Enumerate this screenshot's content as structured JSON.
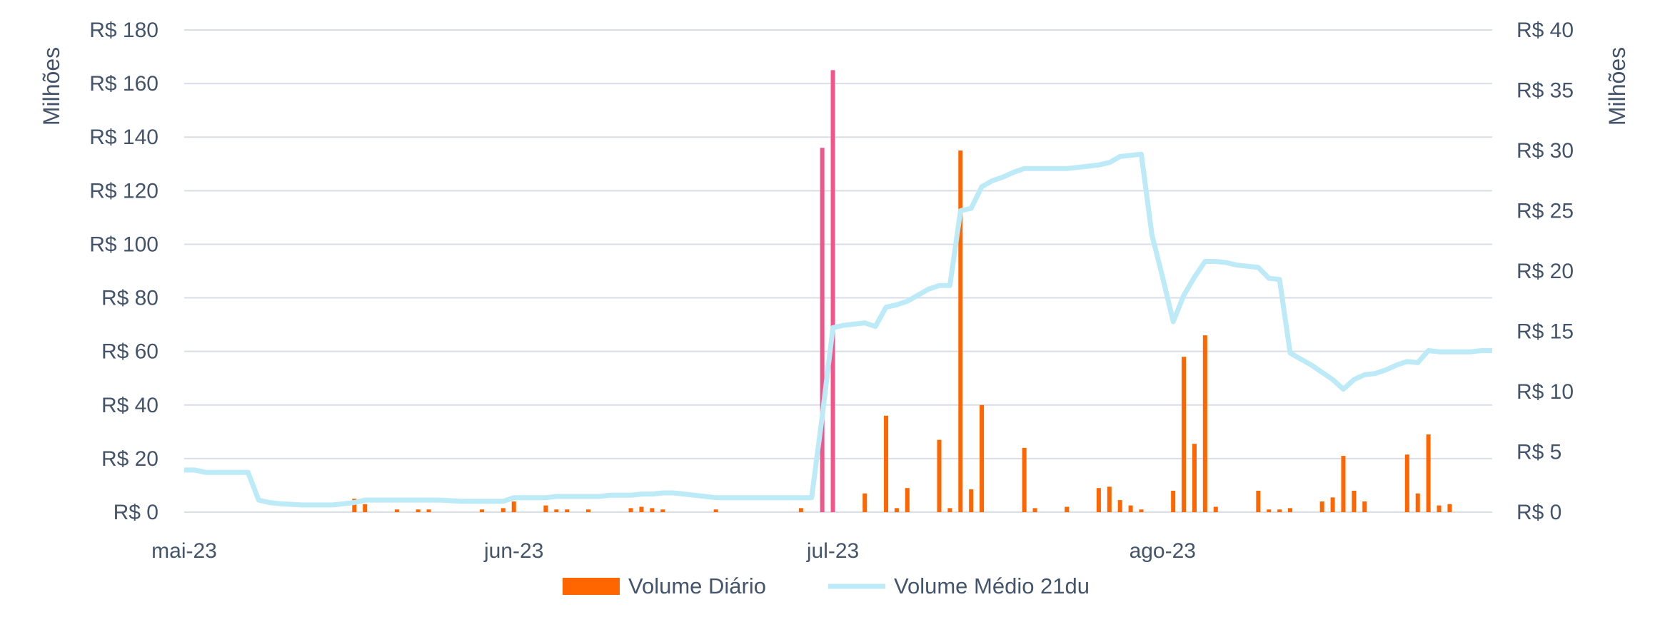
{
  "chart_data": {
    "type": "bar",
    "y_left": {
      "label": "Milhões",
      "ticks": [
        "R$ 0",
        "R$ 20",
        "R$ 40",
        "R$ 60",
        "R$ 80",
        "R$ 100",
        "R$ 120",
        "R$ 140",
        "R$ 160",
        "R$ 180"
      ],
      "range": [
        0,
        180
      ]
    },
    "y_right": {
      "label": "Milhões",
      "ticks": [
        "R$ 0",
        "R$ 5",
        "R$ 10",
        "R$ 15",
        "R$ 20",
        "R$ 25",
        "R$ 30",
        "R$ 35",
        "R$ 40"
      ],
      "range": [
        0,
        40
      ]
    },
    "x_axis": {
      "range": [
        0,
        123
      ],
      "ticks": [
        {
          "label": "mai-23",
          "day": 0
        },
        {
          "label": "jun-23",
          "day": 31
        },
        {
          "label": "jul-23",
          "day": 61
        },
        {
          "label": "ago-23",
          "day": 92
        }
      ]
    },
    "grid": true,
    "legend_position": "bottom",
    "colors": {
      "bar": "#FF6600",
      "bar_highlight": "#F0568A",
      "line": "#BDEAF7",
      "text": "#44546A",
      "grid": "#D9DDE6"
    },
    "series": [
      {
        "name": "Volume Diário",
        "type": "bar",
        "axis": "left",
        "points": [
          {
            "day": 16,
            "v": 5
          },
          {
            "day": 17,
            "v": 3
          },
          {
            "day": 20,
            "v": 1
          },
          {
            "day": 22,
            "v": 1
          },
          {
            "day": 23,
            "v": 1
          },
          {
            "day": 28,
            "v": 1
          },
          {
            "day": 30,
            "v": 1.5
          },
          {
            "day": 31,
            "v": 4
          },
          {
            "day": 34,
            "v": 2.5
          },
          {
            "day": 35,
            "v": 1
          },
          {
            "day": 36,
            "v": 1
          },
          {
            "day": 38,
            "v": 1
          },
          {
            "day": 42,
            "v": 1.5
          },
          {
            "day": 43,
            "v": 2
          },
          {
            "day": 44,
            "v": 1.5
          },
          {
            "day": 45,
            "v": 1
          },
          {
            "day": 50,
            "v": 1
          },
          {
            "day": 58,
            "v": 1.5
          },
          {
            "day": 60,
            "v": 136,
            "highlight": true
          },
          {
            "day": 61,
            "v": 165,
            "highlight": true
          },
          {
            "day": 64,
            "v": 7
          },
          {
            "day": 66,
            "v": 36
          },
          {
            "day": 67,
            "v": 1.5
          },
          {
            "day": 68,
            "v": 9
          },
          {
            "day": 71,
            "v": 27
          },
          {
            "day": 72,
            "v": 1.5
          },
          {
            "day": 73,
            "v": 135
          },
          {
            "day": 74,
            "v": 8.5
          },
          {
            "day": 75,
            "v": 40
          },
          {
            "day": 79,
            "v": 24
          },
          {
            "day": 80,
            "v": 1.5
          },
          {
            "day": 83,
            "v": 2
          },
          {
            "day": 86,
            "v": 9
          },
          {
            "day": 87,
            "v": 9.5
          },
          {
            "day": 88,
            "v": 4.5
          },
          {
            "day": 89,
            "v": 2.5
          },
          {
            "day": 90,
            "v": 1
          },
          {
            "day": 93,
            "v": 8
          },
          {
            "day": 94,
            "v": 58
          },
          {
            "day": 95,
            "v": 25.5
          },
          {
            "day": 96,
            "v": 66
          },
          {
            "day": 97,
            "v": 2
          },
          {
            "day": 101,
            "v": 8
          },
          {
            "day": 102,
            "v": 1
          },
          {
            "day": 103,
            "v": 1
          },
          {
            "day": 104,
            "v": 1.5
          },
          {
            "day": 107,
            "v": 4
          },
          {
            "day": 108,
            "v": 5.5
          },
          {
            "day": 109,
            "v": 21
          },
          {
            "day": 110,
            "v": 8
          },
          {
            "day": 111,
            "v": 4
          },
          {
            "day": 115,
            "v": 21.5
          },
          {
            "day": 116,
            "v": 7
          },
          {
            "day": 117,
            "v": 29
          },
          {
            "day": 118,
            "v": 2.5
          },
          {
            "day": 119,
            "v": 3
          }
        ]
      },
      {
        "name": "Volume Médio 21du",
        "type": "line",
        "axis": "right",
        "points": [
          [
            0,
            3.5
          ],
          [
            1,
            3.5
          ],
          [
            2,
            3.3
          ],
          [
            3,
            3.3
          ],
          [
            4,
            3.3
          ],
          [
            5,
            3.3
          ],
          [
            6,
            3.3
          ],
          [
            7,
            1.0
          ],
          [
            8,
            0.8
          ],
          [
            9,
            0.7
          ],
          [
            10,
            0.65
          ],
          [
            11,
            0.6
          ],
          [
            12,
            0.6
          ],
          [
            13,
            0.6
          ],
          [
            14,
            0.6
          ],
          [
            15,
            0.7
          ],
          [
            16,
            0.8
          ],
          [
            17,
            1.0
          ],
          [
            18,
            1.0
          ],
          [
            19,
            1.0
          ],
          [
            20,
            1.0
          ],
          [
            21,
            1.0
          ],
          [
            22,
            1.0
          ],
          [
            23,
            1.0
          ],
          [
            24,
            1.0
          ],
          [
            25,
            0.95
          ],
          [
            26,
            0.9
          ],
          [
            27,
            0.9
          ],
          [
            28,
            0.9
          ],
          [
            29,
            0.9
          ],
          [
            30,
            0.9
          ],
          [
            31,
            1.2
          ],
          [
            32,
            1.2
          ],
          [
            33,
            1.2
          ],
          [
            34,
            1.2
          ],
          [
            35,
            1.3
          ],
          [
            36,
            1.3
          ],
          [
            37,
            1.3
          ],
          [
            38,
            1.3
          ],
          [
            39,
            1.3
          ],
          [
            40,
            1.4
          ],
          [
            41,
            1.4
          ],
          [
            42,
            1.4
          ],
          [
            43,
            1.5
          ],
          [
            44,
            1.5
          ],
          [
            45,
            1.6
          ],
          [
            46,
            1.6
          ],
          [
            47,
            1.5
          ],
          [
            48,
            1.4
          ],
          [
            49,
            1.3
          ],
          [
            50,
            1.2
          ],
          [
            51,
            1.2
          ],
          [
            52,
            1.2
          ],
          [
            53,
            1.2
          ],
          [
            54,
            1.2
          ],
          [
            55,
            1.2
          ],
          [
            56,
            1.2
          ],
          [
            57,
            1.2
          ],
          [
            58,
            1.2
          ],
          [
            59,
            1.2
          ],
          [
            60,
            8.0
          ],
          [
            61,
            15.3
          ],
          [
            62,
            15.5
          ],
          [
            63,
            15.6
          ],
          [
            64,
            15.7
          ],
          [
            65,
            15.4
          ],
          [
            66,
            17.0
          ],
          [
            67,
            17.2
          ],
          [
            68,
            17.5
          ],
          [
            69,
            18.0
          ],
          [
            70,
            18.5
          ],
          [
            71,
            18.8
          ],
          [
            72,
            18.8
          ],
          [
            73,
            25.0
          ],
          [
            74,
            25.2
          ],
          [
            75,
            27.0
          ],
          [
            76,
            27.5
          ],
          [
            77,
            27.8
          ],
          [
            78,
            28.2
          ],
          [
            79,
            28.5
          ],
          [
            80,
            28.5
          ],
          [
            81,
            28.5
          ],
          [
            82,
            28.5
          ],
          [
            83,
            28.5
          ],
          [
            84,
            28.6
          ],
          [
            85,
            28.7
          ],
          [
            86,
            28.8
          ],
          [
            87,
            29.0
          ],
          [
            88,
            29.5
          ],
          [
            89,
            29.6
          ],
          [
            90,
            29.7
          ],
          [
            91,
            23.0
          ],
          [
            92,
            19.5
          ],
          [
            93,
            15.8
          ],
          [
            94,
            18.0
          ],
          [
            95,
            19.5
          ],
          [
            96,
            20.8
          ],
          [
            97,
            20.8
          ],
          [
            98,
            20.7
          ],
          [
            99,
            20.5
          ],
          [
            100,
            20.4
          ],
          [
            101,
            20.3
          ],
          [
            102,
            19.4
          ],
          [
            103,
            19.3
          ],
          [
            104,
            13.2
          ],
          [
            105,
            12.7
          ],
          [
            106,
            12.2
          ],
          [
            107,
            11.6
          ],
          [
            108,
            11.0
          ],
          [
            109,
            10.2
          ],
          [
            110,
            11.0
          ],
          [
            111,
            11.4
          ],
          [
            112,
            11.5
          ],
          [
            113,
            11.8
          ],
          [
            114,
            12.2
          ],
          [
            115,
            12.5
          ],
          [
            116,
            12.4
          ],
          [
            117,
            13.4
          ],
          [
            118,
            13.3
          ],
          [
            119,
            13.3
          ],
          [
            120,
            13.3
          ],
          [
            121,
            13.3
          ],
          [
            122,
            13.4
          ],
          [
            123,
            13.4
          ]
        ]
      }
    ]
  }
}
